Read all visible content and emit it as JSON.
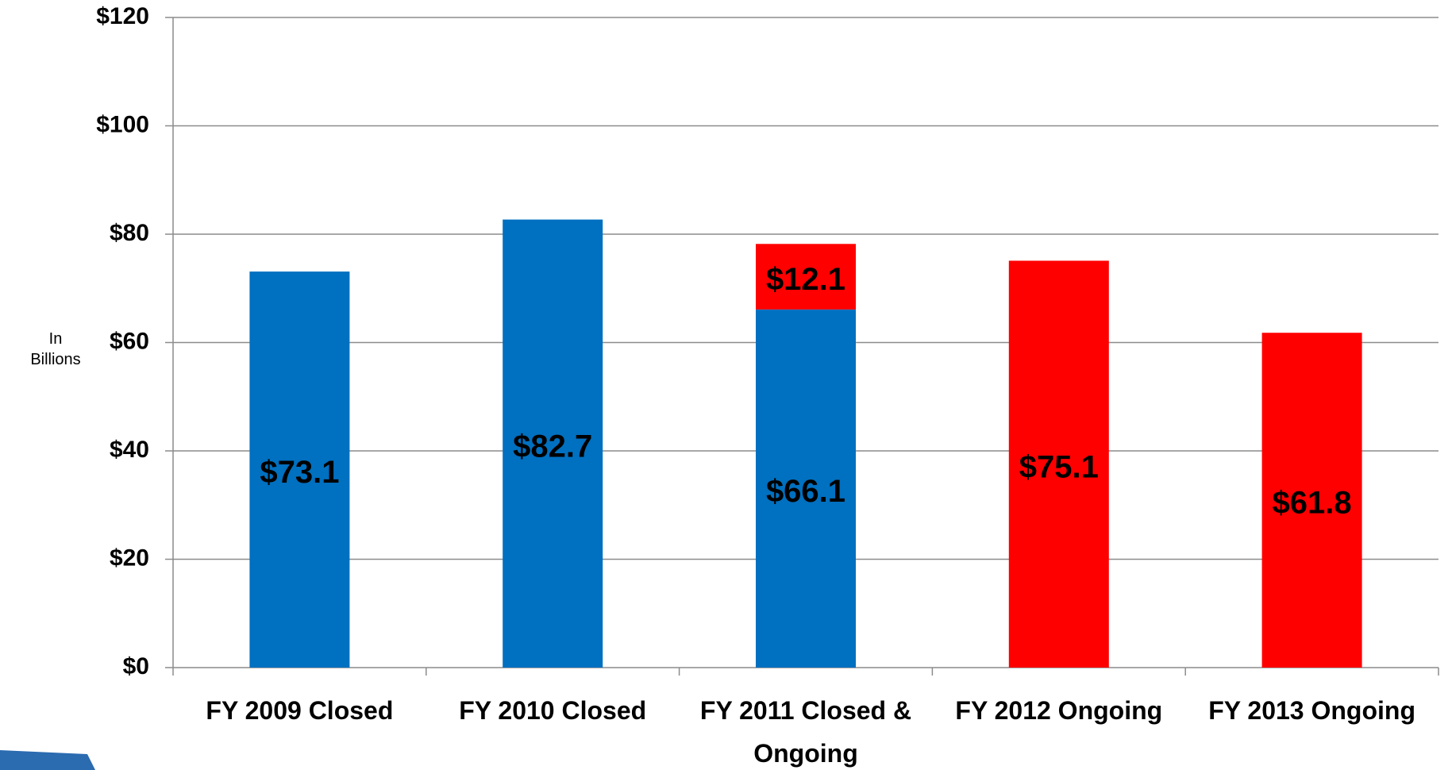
{
  "chart_data": {
    "type": "stacked_bar",
    "y_label": "In Billions",
    "categories": [
      "FY 2009 Closed",
      "FY 2010 Closed",
      "FY 2011 Closed & Ongoing",
      "FY 2012 Ongoing",
      "FY 2013 Ongoing"
    ],
    "series": [
      {
        "color": "#0070c0",
        "values": [
          73.1,
          82.7,
          66.1,
          null,
          null
        ],
        "value_labels": [
          "$73.1",
          "$82.7",
          "$66.1",
          null,
          null
        ]
      },
      {
        "color": "#ff0000",
        "values": [
          null,
          null,
          12.1,
          75.1,
          61.8
        ],
        "value_labels": [
          null,
          null,
          "$12.1",
          "$75.1",
          "$61.8"
        ]
      }
    ],
    "ylim": [
      0,
      120
    ],
    "yticks": [
      {
        "value": 0,
        "label": "$0"
      },
      {
        "value": 20,
        "label": "$20"
      },
      {
        "value": 40,
        "label": "$40"
      },
      {
        "value": 60,
        "label": "$60"
      },
      {
        "value": 80,
        "label": "$80"
      },
      {
        "value": 100,
        "label": "$100"
      },
      {
        "value": 120,
        "label": "$120"
      }
    ],
    "grid": true
  }
}
